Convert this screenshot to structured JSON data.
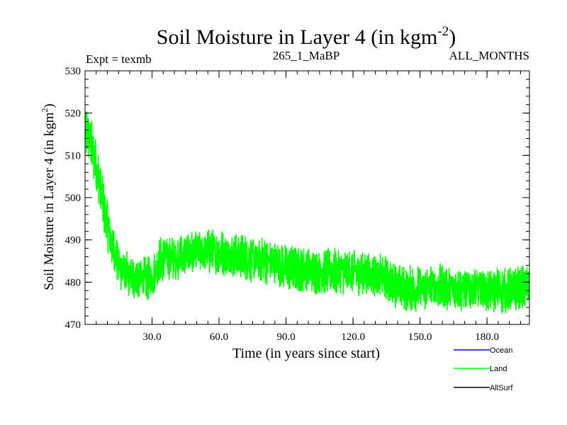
{
  "chart_data": {
    "type": "line",
    "title": "Soil Moisture in Layer 4 (in kgm",
    "title_sup": "-2",
    "title_close": ")",
    "subtitle_left": "Expt = texmb",
    "subtitle_center": "265_1_MaBP",
    "subtitle_right": "ALL_MONTHS",
    "xlabel": "Time (in years since start)",
    "ylabel": "Soil Moisture in Layer 4 (in kgm",
    "ylabel_sup": "2",
    "ylabel_close": ")",
    "xlim": [
      0,
      199
    ],
    "ylim": [
      470,
      530
    ],
    "x_ticks": [
      30,
      60,
      90,
      120,
      150,
      180
    ],
    "x_tick_labels": [
      "30.0",
      "60.0",
      "90.0",
      "120.0",
      "150.0",
      "180.0"
    ],
    "y_ticks": [
      470,
      480,
      490,
      500,
      510,
      520,
      530
    ],
    "y_tick_labels": [
      "470",
      "480",
      "490",
      "500",
      "510",
      "520",
      "530"
    ],
    "legend": [
      {
        "name": "Ocean",
        "color": "#0000ff"
      },
      {
        "name": "Land",
        "color": "#00ff00"
      },
      {
        "name": "AllSurf",
        "color": "#000000"
      }
    ],
    "series": [
      {
        "name": "Land",
        "color": "#00ff00",
        "samples_per_year": 12,
        "noise_amplitude": 4.5,
        "trend_x": [
          0,
          1,
          3,
          6,
          9,
          12,
          15,
          18,
          21,
          24,
          27,
          30,
          33,
          36,
          40,
          45,
          50,
          55,
          60,
          65,
          70,
          75,
          80,
          85,
          90,
          95,
          100,
          105,
          110,
          115,
          120,
          125,
          130,
          135,
          140,
          145,
          150,
          155,
          160,
          165,
          170,
          175,
          180,
          185,
          190,
          195,
          199
        ],
        "trend_y": [
          514,
          516,
          512,
          505,
          496,
          489,
          484,
          482,
          481,
          481,
          481,
          481,
          485,
          486,
          485.5,
          486.5,
          487,
          487,
          487,
          486.5,
          486,
          485.5,
          485,
          484.5,
          483.5,
          483,
          483,
          482.5,
          482.5,
          482.5,
          482.5,
          482,
          481.5,
          481,
          479,
          478.5,
          478.5,
          479,
          479,
          478.5,
          478.5,
          478.5,
          478,
          478,
          478,
          478.5,
          479
        ]
      },
      {
        "name": "Ocean",
        "color": "#0000ff",
        "values": []
      },
      {
        "name": "AllSurf",
        "color": "#000000",
        "values": []
      }
    ]
  }
}
